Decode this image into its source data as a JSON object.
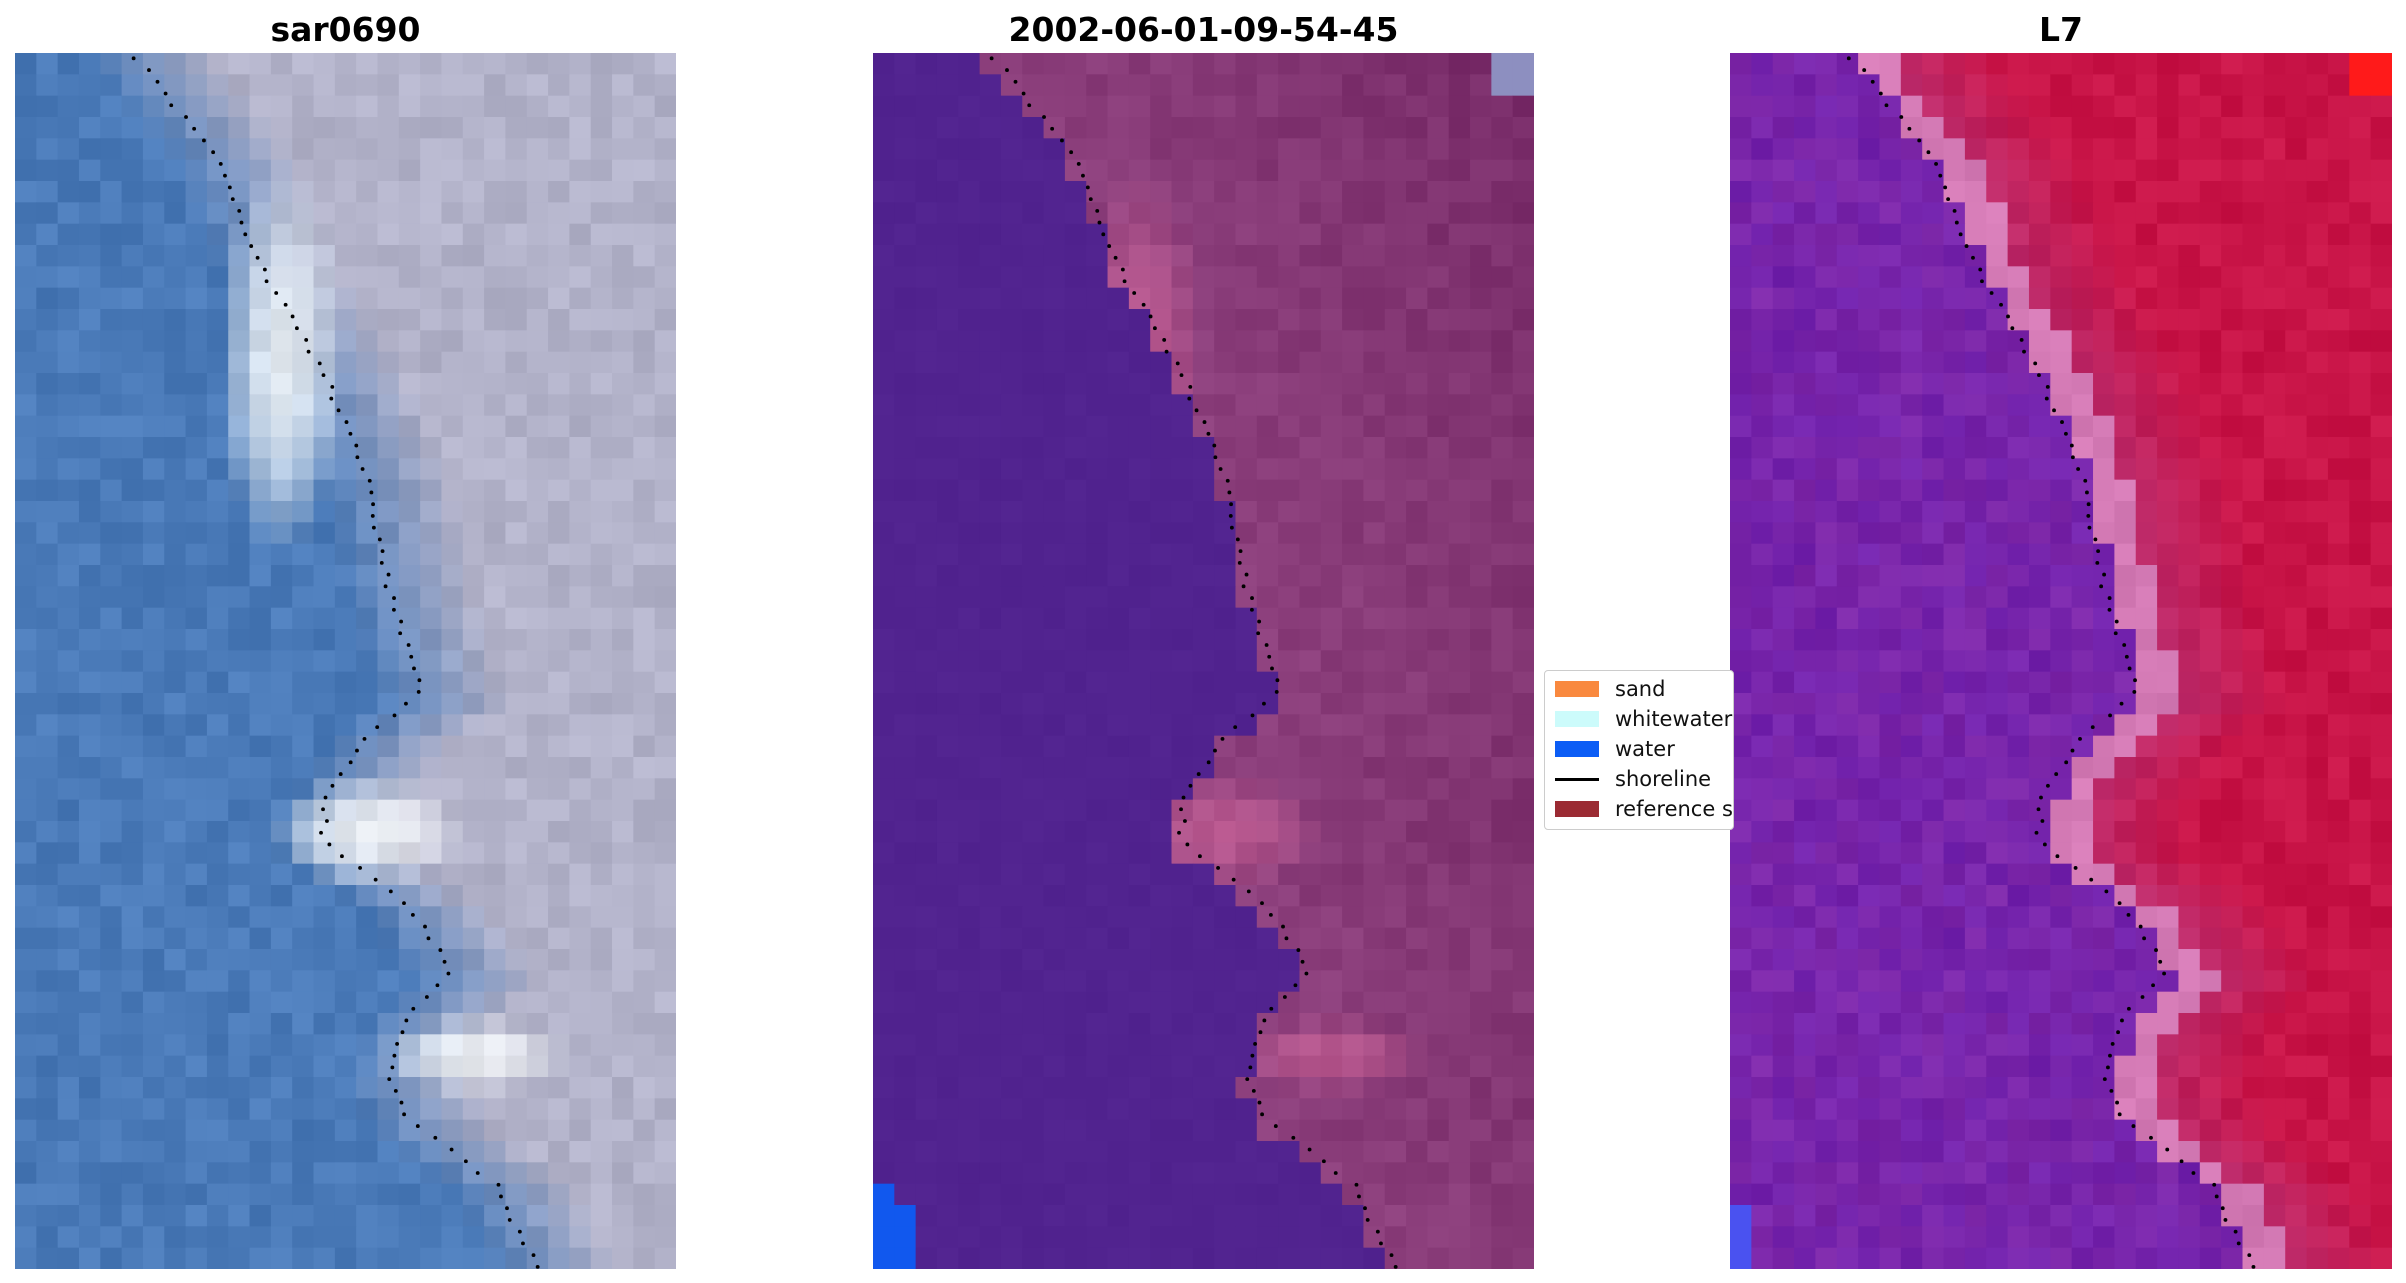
{
  "panels": [
    {
      "title": "sar0690",
      "style": "rgb"
    },
    {
      "title": "2002-06-01-09-54-45",
      "style": "classified"
    },
    {
      "title": "L7",
      "style": "index"
    }
  ],
  "legend": {
    "items": [
      {
        "label": "sand",
        "color": "#f9893f",
        "kind": "patch"
      },
      {
        "label": "whitewater",
        "color": "#ccfbfb",
        "kind": "patch"
      },
      {
        "label": "water",
        "color": "#0c5df5",
        "kind": "patch"
      },
      {
        "label": "shoreline",
        "color": "#000000",
        "kind": "line"
      },
      {
        "label": "reference s",
        "color": "#9b2b33",
        "kind": "patch"
      }
    ]
  },
  "colors": {
    "sea_rgb": "#4a7ab8",
    "land_rgb": "#b2b2c9",
    "whitewater_rgb": "#f4f7f8",
    "water_class": "#51238f",
    "land_class": "#8c3f7c",
    "foam_class": "#c66196",
    "blue_corner": "#1158ee",
    "water_index": "#7d27a8",
    "land_index": "#c81447",
    "edge_index": "#d47ab5",
    "red_corner": "#ff1a1a",
    "shoreline_points": "#000000"
  }
}
